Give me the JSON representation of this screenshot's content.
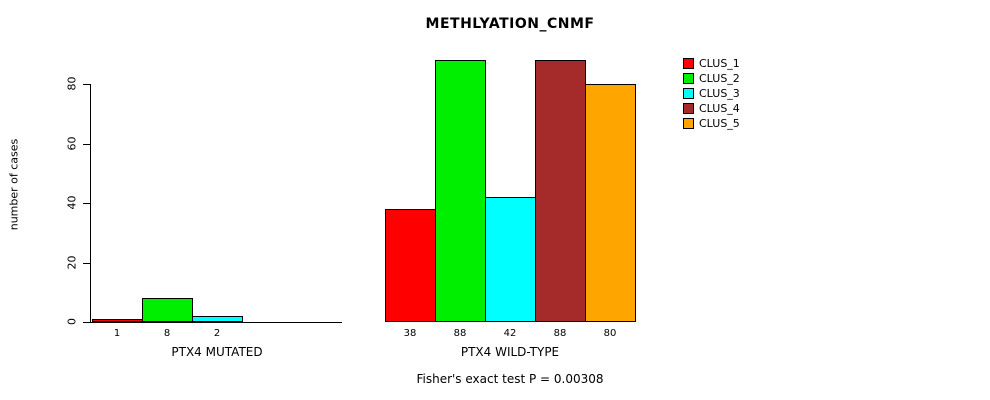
{
  "chart_data": {
    "type": "bar",
    "title": "METHLYATION_CNMF",
    "ylabel": "number of cases",
    "xlabel": "",
    "subtitle": "Fisher's exact test P = 0.00308",
    "ylim": [
      0,
      88
    ],
    "yticks": [
      0,
      20,
      40,
      60,
      80
    ],
    "grid": false,
    "legend_position": "right",
    "categories": [
      "PTX4 MUTATED",
      "PTX4 WILD-TYPE"
    ],
    "groups": [
      {
        "label": "PTX4 MUTATED",
        "values": [
          1,
          8,
          2,
          0,
          0
        ],
        "bar_labels": [
          "1",
          "8",
          "2",
          "",
          ""
        ]
      },
      {
        "label": "PTX4 WILD-TYPE",
        "values": [
          38,
          88,
          42,
          88,
          80
        ],
        "bar_labels": [
          "38",
          "88",
          "42",
          "88",
          "80"
        ]
      }
    ],
    "series": [
      {
        "name": "CLUS_1",
        "color": "#FF0000"
      },
      {
        "name": "CLUS_2",
        "color": "#00EE00"
      },
      {
        "name": "CLUS_3",
        "color": "#00FFFF"
      },
      {
        "name": "CLUS_4",
        "color": "#A52A2A"
      },
      {
        "name": "CLUS_5",
        "color": "#FFA500"
      }
    ]
  }
}
